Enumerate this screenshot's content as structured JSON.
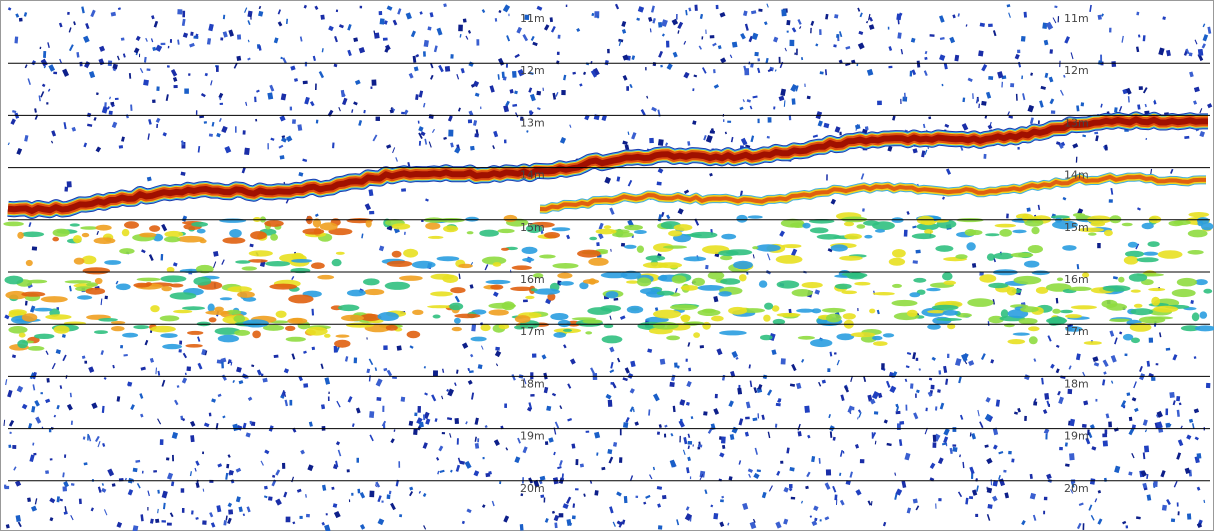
{
  "depth_labels": [
    "11m",
    "12m",
    "13m",
    "14m",
    "15m",
    "16m",
    "17m",
    "18m",
    "19m",
    "20m"
  ]
}
